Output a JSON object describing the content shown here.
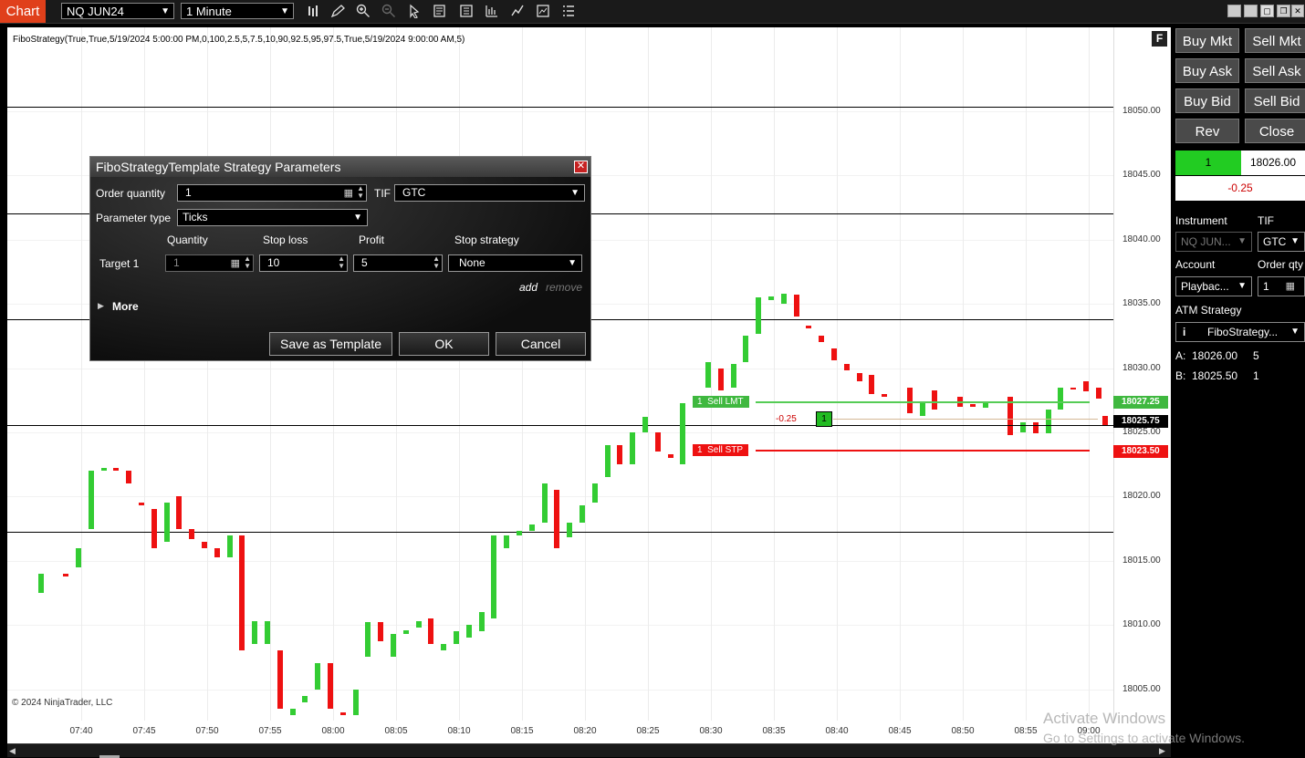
{
  "toolbar": {
    "chart_tab": "Chart",
    "instrument": "NQ JUN24",
    "interval": "1 Minute"
  },
  "chart": {
    "strategy_label": "FiboStrategy(True,True,5/19/2024 5:00:00 PM,0,100,2.5,5,7.5,10,90,92.5,95,97.5,True,5/19/2024 9:00:00 AM,5)",
    "f_button": "F",
    "copyright": "© 2024 NinjaTrader, LLC",
    "price_labels": [
      "18050.00",
      "18045.00",
      "18040.00",
      "18035.00",
      "18030.00",
      "18025.00",
      "18020.00",
      "18015.00",
      "18010.00",
      "18005.00"
    ],
    "time_labels": [
      "07:40",
      "07:45",
      "07:50",
      "07:55",
      "08:00",
      "08:05",
      "08:10",
      "08:15",
      "08:20",
      "08:25",
      "08:30",
      "08:35",
      "08:40",
      "08:45",
      "08:50",
      "08:55",
      "09:00"
    ],
    "colors": {
      "up": "#33cc33",
      "down": "#ee1111",
      "target": "#55cc55",
      "stop": "#ee1111",
      "position": "#d4b896"
    },
    "orders": {
      "target_tag": "1  Sell LMT",
      "stop_tag": "1  Sell STP",
      "target_price": "18027.25",
      "stop_price": "18023.50",
      "last_price": "18025.75",
      "pnl": "-0.25",
      "position_qty": "1"
    }
  },
  "chart_data": {
    "type": "candlestick",
    "ylim": [
      18003.0,
      18051.5
    ],
    "bars": [
      {
        "t": "07:37",
        "o": 18012.5,
        "c": 18014.0
      },
      {
        "t": "07:39",
        "o": 18014.0,
        "c": 18013.8
      },
      {
        "t": "07:40",
        "o": 18014.5,
        "c": 18016.0
      },
      {
        "t": "07:41",
        "o": 18017.5,
        "c": 18022.0
      },
      {
        "t": "07:42",
        "o": 18022.0,
        "c": 18022.2
      },
      {
        "t": "07:43",
        "o": 18022.2,
        "c": 18022.0
      },
      {
        "t": "07:44",
        "o": 18022.0,
        "c": 18021.0
      },
      {
        "t": "07:45",
        "o": 18019.5,
        "c": 18019.3
      },
      {
        "t": "07:46",
        "o": 18019.0,
        "c": 18016.0
      },
      {
        "t": "07:47",
        "o": 18016.5,
        "c": 18019.5
      },
      {
        "t": "07:48",
        "o": 18020.0,
        "c": 18017.5
      },
      {
        "t": "07:49",
        "o": 18017.5,
        "c": 18016.7
      },
      {
        "t": "07:50",
        "o": 18016.5,
        "c": 18016.0
      },
      {
        "t": "07:51",
        "o": 18016.0,
        "c": 18015.3
      },
      {
        "t": "07:52",
        "o": 18015.3,
        "c": 18017.0
      },
      {
        "t": "07:53",
        "o": 18017.0,
        "c": 18008.0
      },
      {
        "t": "07:54",
        "o": 18008.5,
        "c": 18010.3
      },
      {
        "t": "07:55",
        "o": 18008.5,
        "c": 18010.3
      },
      {
        "t": "07:56",
        "o": 18008.0,
        "c": 18003.5
      },
      {
        "t": "07:57",
        "o": 18003.0,
        "c": 18003.5
      },
      {
        "t": "07:58",
        "o": 18004.0,
        "c": 18004.5
      },
      {
        "t": "07:59",
        "o": 18005.0,
        "c": 18007.0
      },
      {
        "t": "08:00",
        "o": 18007.0,
        "c": 18003.5
      },
      {
        "t": "08:01",
        "o": 18003.2,
        "c": 18003.0
      },
      {
        "t": "08:02",
        "o": 18003.0,
        "c": 18005.0
      },
      {
        "t": "08:03",
        "o": 18007.5,
        "c": 18010.2
      },
      {
        "t": "08:04",
        "o": 18010.2,
        "c": 18008.7
      },
      {
        "t": "08:05",
        "o": 18007.5,
        "c": 18009.3
      },
      {
        "t": "08:06",
        "o": 18009.3,
        "c": 18009.6
      },
      {
        "t": "08:07",
        "o": 18009.8,
        "c": 18010.3
      },
      {
        "t": "08:08",
        "o": 18010.5,
        "c": 18008.5
      },
      {
        "t": "08:09",
        "o": 18008.0,
        "c": 18008.5
      },
      {
        "t": "08:10",
        "o": 18008.5,
        "c": 18009.5
      },
      {
        "t": "08:11",
        "o": 18009.0,
        "c": 18010.0
      },
      {
        "t": "08:12",
        "o": 18009.5,
        "c": 18011.0
      },
      {
        "t": "08:13",
        "o": 18010.5,
        "c": 18017.0
      },
      {
        "t": "08:14",
        "o": 18016.0,
        "c": 18017.0
      },
      {
        "t": "08:15",
        "o": 18017.0,
        "c": 18017.3
      },
      {
        "t": "08:16",
        "o": 18017.3,
        "c": 18017.8
      },
      {
        "t": "08:17",
        "o": 18018.0,
        "c": 18021.0
      },
      {
        "t": "08:18",
        "o": 18020.5,
        "c": 18016.0
      },
      {
        "t": "08:19",
        "o": 18016.8,
        "c": 18018.0
      },
      {
        "t": "08:20",
        "o": 18018.0,
        "c": 18019.3
      },
      {
        "t": "08:21",
        "o": 18019.5,
        "c": 18021.0
      },
      {
        "t": "08:22",
        "o": 18021.5,
        "c": 18024.0
      },
      {
        "t": "08:23",
        "o": 18024.0,
        "c": 18022.5
      },
      {
        "t": "08:24",
        "o": 18022.5,
        "c": 18025.0
      },
      {
        "t": "08:25",
        "o": 18025.0,
        "c": 18026.2
      },
      {
        "t": "08:26",
        "o": 18025.0,
        "c": 18023.5
      },
      {
        "t": "08:27",
        "o": 18023.3,
        "c": 18023.0
      },
      {
        "t": "08:28",
        "o": 18022.5,
        "c": 18027.3
      },
      {
        "t": "08:29",
        "o": 18027.5,
        "c": 18027.6
      },
      {
        "t": "08:30",
        "o": 18028.5,
        "c": 18030.5
      },
      {
        "t": "08:31",
        "o": 18030.0,
        "c": 18028.3
      },
      {
        "t": "08:32",
        "o": 18028.5,
        "c": 18030.3
      },
      {
        "t": "08:33",
        "o": 18030.5,
        "c": 18032.5
      },
      {
        "t": "08:34",
        "o": 18032.7,
        "c": 18035.5
      },
      {
        "t": "08:35",
        "o": 18035.3,
        "c": 18035.6
      },
      {
        "t": "08:36",
        "o": 18035.0,
        "c": 18035.8
      },
      {
        "t": "08:37",
        "o": 18035.7,
        "c": 18034.0
      },
      {
        "t": "08:38",
        "o": 18033.3,
        "c": 18033.1
      },
      {
        "t": "08:39",
        "o": 18032.5,
        "c": 18032.0
      },
      {
        "t": "08:40",
        "o": 18031.5,
        "c": 18030.6
      },
      {
        "t": "08:41",
        "o": 18030.3,
        "c": 18029.8
      },
      {
        "t": "08:42",
        "o": 18029.6,
        "c": 18029.0
      },
      {
        "t": "08:43",
        "o": 18029.5,
        "c": 18028.0
      },
      {
        "t": "08:44",
        "o": 18028.0,
        "c": 18027.8
      },
      {
        "t": "08:46",
        "o": 18028.5,
        "c": 18026.5
      },
      {
        "t": "08:47",
        "o": 18026.3,
        "c": 18027.4
      },
      {
        "t": "08:48",
        "o": 18028.3,
        "c": 18026.8
      },
      {
        "t": "08:50",
        "o": 18027.8,
        "c": 18027.0
      },
      {
        "t": "08:51",
        "o": 18027.2,
        "c": 18027.0
      },
      {
        "t": "08:52",
        "o": 18026.9,
        "c": 18027.4
      },
      {
        "t": "08:54",
        "o": 18027.8,
        "c": 18024.8
      },
      {
        "t": "08:55",
        "o": 18025.0,
        "c": 18025.8
      },
      {
        "t": "08:56",
        "o": 18025.8,
        "c": 18024.9
      },
      {
        "t": "08:57",
        "o": 18024.9,
        "c": 18026.8
      },
      {
        "t": "08:58",
        "o": 18026.8,
        "c": 18028.5
      },
      {
        "t": "08:59",
        "o": 18028.5,
        "c": 18028.4
      },
      {
        "t": "09:00",
        "o": 18029.0,
        "c": 18028.2
      },
      {
        "t": "09:01",
        "o": 18028.5,
        "c": 18027.6
      },
      {
        "t": "09:01b",
        "o": 18026.3,
        "c": 18025.6
      }
    ]
  },
  "panel": {
    "buy_mkt": "Buy Mkt",
    "sell_mkt": "Sell Mkt",
    "buy_ask": "Buy Ask",
    "sell_ask": "Sell Ask",
    "buy_bid": "Buy Bid",
    "sell_bid": "Sell Bid",
    "rev": "Rev",
    "close": "Close",
    "position_qty": "1",
    "avg_price": "18026.00",
    "pnl": "-0.25",
    "instrument_label": "Instrument",
    "instrument_value": "NQ JUN...",
    "tif_label": "TIF",
    "tif_value": "GTC",
    "account_label": "Account",
    "account_value": "Playbac...",
    "order_qty_label": "Order qty",
    "order_qty_value": "1",
    "atm_label": "ATM Strategy",
    "atm_value": "FiboStrategy...",
    "ask_label": "A:",
    "ask_price": "18026.00",
    "ask_size": "5",
    "bid_label": "B:",
    "bid_price": "18025.50",
    "bid_size": "1"
  },
  "dialog": {
    "title": "FiboStrategyTemplate Strategy Parameters",
    "order_qty_label": "Order quantity",
    "order_qty_value": "1",
    "tif_label": "TIF",
    "tif_value": "GTC",
    "param_type_label": "Parameter type",
    "param_type_value": "Ticks",
    "col_quantity": "Quantity",
    "col_stop_loss": "Stop loss",
    "col_profit": "Profit",
    "col_stop_strategy": "Stop strategy",
    "target_label": "Target 1",
    "target_qty": "1",
    "target_stop_loss": "10",
    "target_profit": "5",
    "target_stop_strategy": "None",
    "add": "add",
    "remove": "remove",
    "more": "More",
    "save_template": "Save as Template",
    "ok": "OK",
    "cancel": "Cancel"
  },
  "watermark": {
    "line1": "Activate Windows",
    "line2": "Go to Settings to activate Windows."
  }
}
